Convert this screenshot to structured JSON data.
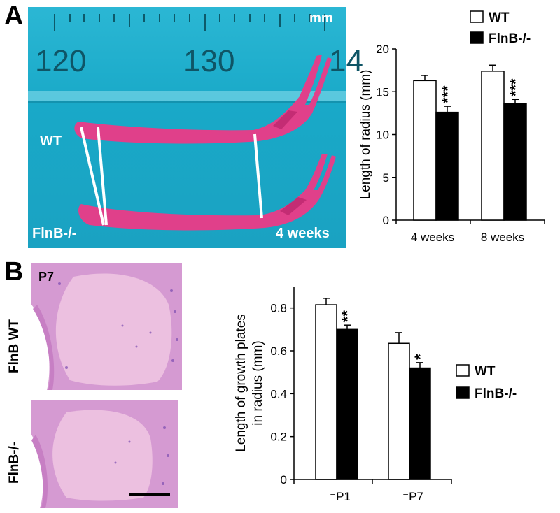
{
  "panels": {
    "a": {
      "letter": "A"
    },
    "b": {
      "letter": "B"
    }
  },
  "photo_a": {
    "ruler_numbers": [
      "120",
      "130",
      "14"
    ],
    "unit_label": "mm",
    "wt_label": "WT",
    "ko_label": "FlnB-/-",
    "age_label": "4 weeks",
    "colors": {
      "background": "#19a9c8",
      "bone": "#e0408a"
    }
  },
  "histology_b": {
    "top_label": "FlnB WT",
    "bottom_label": "FlnB-/-",
    "stage_label": "P7",
    "colors": {
      "tissue": "#c77fc4",
      "cartilage": "#e9b6da",
      "background": "#f4eef6"
    }
  },
  "chart_data": [
    {
      "type": "bar",
      "categories": [
        "4 weeks",
        "8 weeks"
      ],
      "series": [
        {
          "name": "WT",
          "values": [
            16.3,
            17.4
          ],
          "errors": [
            0.6,
            0.7
          ],
          "color": "#ffffff"
        },
        {
          "name": "FlnB-/-",
          "values": [
            12.6,
            13.6
          ],
          "errors": [
            0.7,
            0.5
          ],
          "color": "#000000"
        }
      ],
      "significance": [
        "***",
        "***"
      ],
      "ylabel": "Length of radius (mm)",
      "ylim": [
        0,
        20
      ],
      "yticks": [
        0,
        5,
        10,
        15,
        20
      ],
      "legend": "top"
    },
    {
      "type": "bar",
      "categories": [
        "P1",
        "P7"
      ],
      "series": [
        {
          "name": "WT",
          "values": [
            0.815,
            0.635
          ],
          "errors": [
            0.03,
            0.05
          ],
          "color": "#ffffff"
        },
        {
          "name": "FlnB-/-",
          "values": [
            0.7,
            0.52
          ],
          "errors": [
            0.02,
            0.025
          ],
          "color": "#000000"
        }
      ],
      "significance": [
        "**",
        "*"
      ],
      "ylabel_lines": [
        "Length of growth plates",
        "in radius (mm)"
      ],
      "ylim": [
        0,
        0.9
      ],
      "yticks": [
        "0",
        "0.2",
        "0.4",
        "0.6",
        "0.8"
      ],
      "ytick_values": [
        0,
        0.2,
        0.4,
        0.6,
        0.8
      ],
      "legend": "right"
    }
  ]
}
